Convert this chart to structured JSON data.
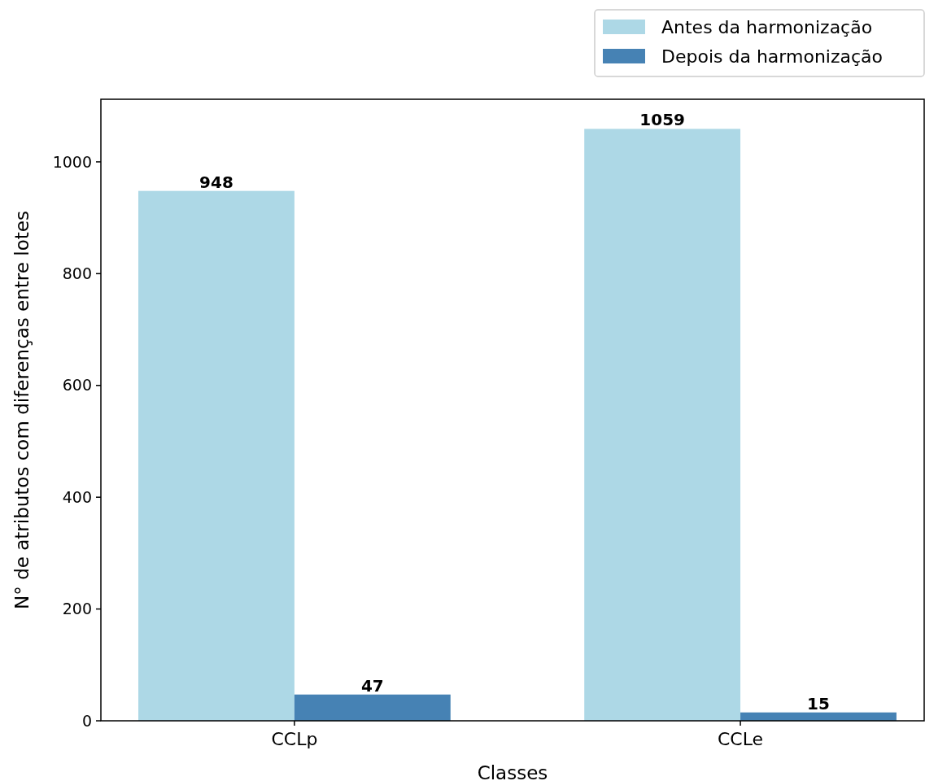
{
  "chart_data": {
    "type": "bar",
    "xlabel": "Classes",
    "ylabel": "N° de atributos com diferenças entre lotes",
    "categories": [
      "CCLp",
      "CCLe"
    ],
    "series": [
      {
        "name": "Antes da harmonização",
        "color": "#add8e6",
        "values": [
          948,
          1059
        ]
      },
      {
        "name": "Depois da harmonização",
        "color": "#4682b4",
        "values": [
          47,
          15
        ]
      }
    ],
    "ylim": [
      0,
      1112
    ],
    "yticks": [
      0,
      200,
      400,
      600,
      800,
      1000
    ],
    "data_labels": true,
    "legend": "top right",
    "grid": false
  }
}
